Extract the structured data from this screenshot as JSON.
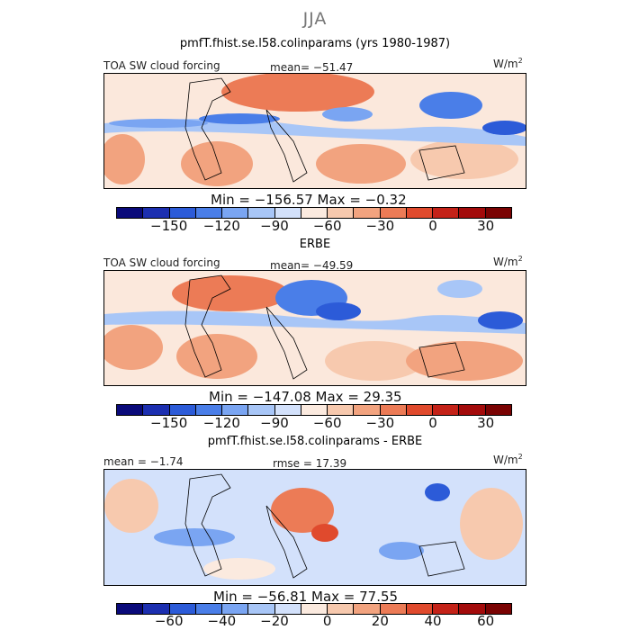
{
  "title": "JJA",
  "colors": [
    "#0a0a7a",
    "#1c2fb0",
    "#2c5bd8",
    "#4a7ee8",
    "#7aa5f2",
    "#a8c6f7",
    "#d3e1fb",
    "#fbeadf",
    "#f7c9ae",
    "#f2a37f",
    "#ec7b56",
    "#e04a2d",
    "#c42218",
    "#a30b0b",
    "#7a0303"
  ],
  "panels": [
    {
      "id": "model",
      "plot_title": "pmfT.fhist.se.l58.colinparams (yrs 1980-1987)",
      "left_label": "TOA SW cloud forcing",
      "center_label": "mean= −51.47",
      "units": "W/m",
      "units_exp": "2",
      "minmax": "Min = −156.57  Max =   −0.32",
      "ticks": [
        "−150",
        "−120",
        "−90",
        "−60",
        "−30",
        "0",
        "30"
      ]
    },
    {
      "id": "obs",
      "plot_title": "ERBE",
      "left_label": "TOA SW cloud forcing",
      "center_label": "mean= −49.59",
      "units": "W/m",
      "units_exp": "2",
      "minmax": "Min = −147.08  Max =   29.35",
      "ticks": [
        "−150",
        "−120",
        "−90",
        "−60",
        "−30",
        "0",
        "30"
      ]
    },
    {
      "id": "diff",
      "plot_title": "pmfT.fhist.se.l58.colinparams - ERBE",
      "left_label": "mean =   −1.74",
      "center_label": "rmse =   17.39",
      "units": "W/m",
      "units_exp": "2",
      "minmax": "Min = −56.81  Max =   77.55",
      "ticks": [
        "−60",
        "−40",
        "−20",
        "0",
        "20",
        "40",
        "60"
      ]
    }
  ],
  "chart_data": [
    {
      "type": "heatmap",
      "title": "pmfT.fhist.se.l58.colinparams (yrs 1980-1987)",
      "variable": "TOA SW cloud forcing",
      "units": "W/m^2",
      "mean": -51.47,
      "min": -156.57,
      "max": -0.32,
      "colorbar_levels": [
        -150,
        -120,
        -90,
        -60,
        -30,
        0,
        30
      ],
      "colorbar_tick_labels": [
        "-150",
        "-120",
        "-90",
        "-60",
        "-30",
        "0",
        "30"
      ]
    },
    {
      "type": "heatmap",
      "title": "ERBE",
      "variable": "TOA SW cloud forcing",
      "units": "W/m^2",
      "mean": -49.59,
      "min": -147.08,
      "max": 29.35,
      "colorbar_levels": [
        -150,
        -120,
        -90,
        -60,
        -30,
        0,
        30
      ],
      "colorbar_tick_labels": [
        "-150",
        "-120",
        "-90",
        "-60",
        "-30",
        "0",
        "30"
      ]
    },
    {
      "type": "heatmap",
      "title": "pmfT.fhist.se.l58.colinparams - ERBE",
      "units": "W/m^2",
      "mean": -1.74,
      "rmse": 17.39,
      "min": -56.81,
      "max": 77.55,
      "colorbar_levels": [
        -60,
        -40,
        -20,
        0,
        20,
        40,
        60
      ],
      "colorbar_tick_labels": [
        "-60",
        "-40",
        "-20",
        "0",
        "20",
        "40",
        "60"
      ]
    }
  ]
}
